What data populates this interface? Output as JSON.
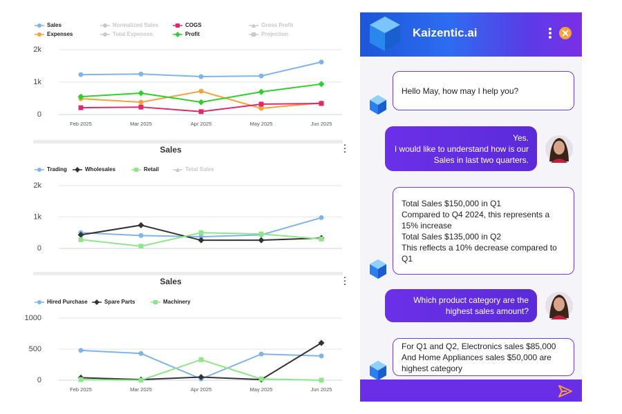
{
  "chart_data": [
    {
      "type": "line",
      "categories": [
        "Feb 2025",
        "Mar 2025",
        "Apr 2025",
        "May 2025",
        "Jun 2025"
      ],
      "series": [
        {
          "name": "Sales",
          "color": "#7fb3ea",
          "marker": "circle",
          "values": [
            1230,
            1250,
            1170,
            1190,
            1620
          ]
        },
        {
          "name": "Expenses",
          "color": "#f7a13a",
          "marker": "circle",
          "values": [
            490,
            380,
            720,
            190,
            360
          ]
        },
        {
          "name": "Normalized Sales",
          "color": "#c8c8c8",
          "marker": "circle",
          "hidden": true
        },
        {
          "name": "Total Expenses",
          "color": "#c8c8c8",
          "marker": "circle",
          "hidden": true
        },
        {
          "name": "COGS",
          "color": "#e0286a",
          "marker": "square",
          "values": [
            210,
            230,
            90,
            320,
            340
          ]
        },
        {
          "name": "Profit",
          "color": "#2fcf2f",
          "marker": "diamond",
          "values": [
            550,
            660,
            380,
            700,
            940
          ]
        },
        {
          "name": "Gross Profit",
          "color": "#c8c8c8",
          "marker": "triangle",
          "hidden": true
        },
        {
          "name": "Projection",
          "color": "#c8c8c8",
          "marker": "square",
          "hidden": true
        }
      ],
      "ylim": [
        0,
        2000
      ],
      "yticks": [
        {
          "value": 0,
          "label": "0"
        },
        {
          "value": 1000,
          "label": "1k"
        },
        {
          "value": 2000,
          "label": "2k"
        }
      ],
      "grid": true
    },
    {
      "type": "line",
      "title": "Sales",
      "categories": [
        null,
        null,
        null,
        null,
        null
      ],
      "series": [
        {
          "name": "Trading",
          "color": "#7fb3ea",
          "marker": "circle",
          "values": [
            500,
            410,
            370,
            430,
            980
          ]
        },
        {
          "name": "Wholesales",
          "color": "#333333",
          "marker": "diamond",
          "values": [
            430,
            740,
            260,
            260,
            330
          ]
        },
        {
          "name": "Retail",
          "color": "#90e58a",
          "marker": "square",
          "values": [
            280,
            70,
            500,
            460,
            300
          ]
        },
        {
          "name": "Total Sales",
          "color": "#c8c8c8",
          "marker": "triangle",
          "hidden": true
        }
      ],
      "ylim": [
        0,
        2000
      ],
      "yticks": [
        {
          "value": 0,
          "label": "0"
        },
        {
          "value": 1000,
          "label": "1k"
        },
        {
          "value": 2000,
          "label": "2k"
        }
      ],
      "grid": true
    },
    {
      "type": "line",
      "title": "Sales",
      "categories": [
        "Feb 2025",
        "Mar 2025",
        "Apr 2025",
        "May 2025",
        "Jun 2025"
      ],
      "series": [
        {
          "name": "Hired Purchase",
          "color": "#7fb3ea",
          "marker": "circle",
          "values": [
            480,
            430,
            20,
            420,
            390
          ]
        },
        {
          "name": "Spare Parts",
          "color": "#333333",
          "marker": "diamond",
          "values": [
            40,
            10,
            50,
            10,
            600
          ]
        },
        {
          "name": "Machinery",
          "color": "#90e58a",
          "marker": "square",
          "values": [
            10,
            0,
            330,
            20,
            0
          ]
        }
      ],
      "ylim": [
        0,
        1000
      ],
      "yticks": [
        0,
        500,
        1000
      ],
      "grid": true
    }
  ],
  "chat": {
    "title": "Kaizentic.ai",
    "messages": [
      {
        "from": "bot",
        "lines": [
          "Hello May, how may I help you?"
        ]
      },
      {
        "from": "user",
        "lines": [
          "Yes.",
          "I would like to understand how is our",
          "Sales in last two quarters."
        ]
      },
      {
        "from": "bot",
        "lines": [
          "Total Sales $150,000 in Q1",
          "Compared to Q4 2024, this represents a",
          "15% increase",
          "Total Sales $135,000 in Q2",
          "This reflects a 10% decrease compared to",
          "Q1"
        ]
      },
      {
        "from": "user",
        "lines": [
          "Which product category are the",
          "highest sales amount?"
        ]
      },
      {
        "from": "bot",
        "lines": [
          "For Q1 and Q2, Electronics sales $85,000",
          "And Home Appliances sales $50,000 are",
          "highest category"
        ]
      }
    ]
  }
}
